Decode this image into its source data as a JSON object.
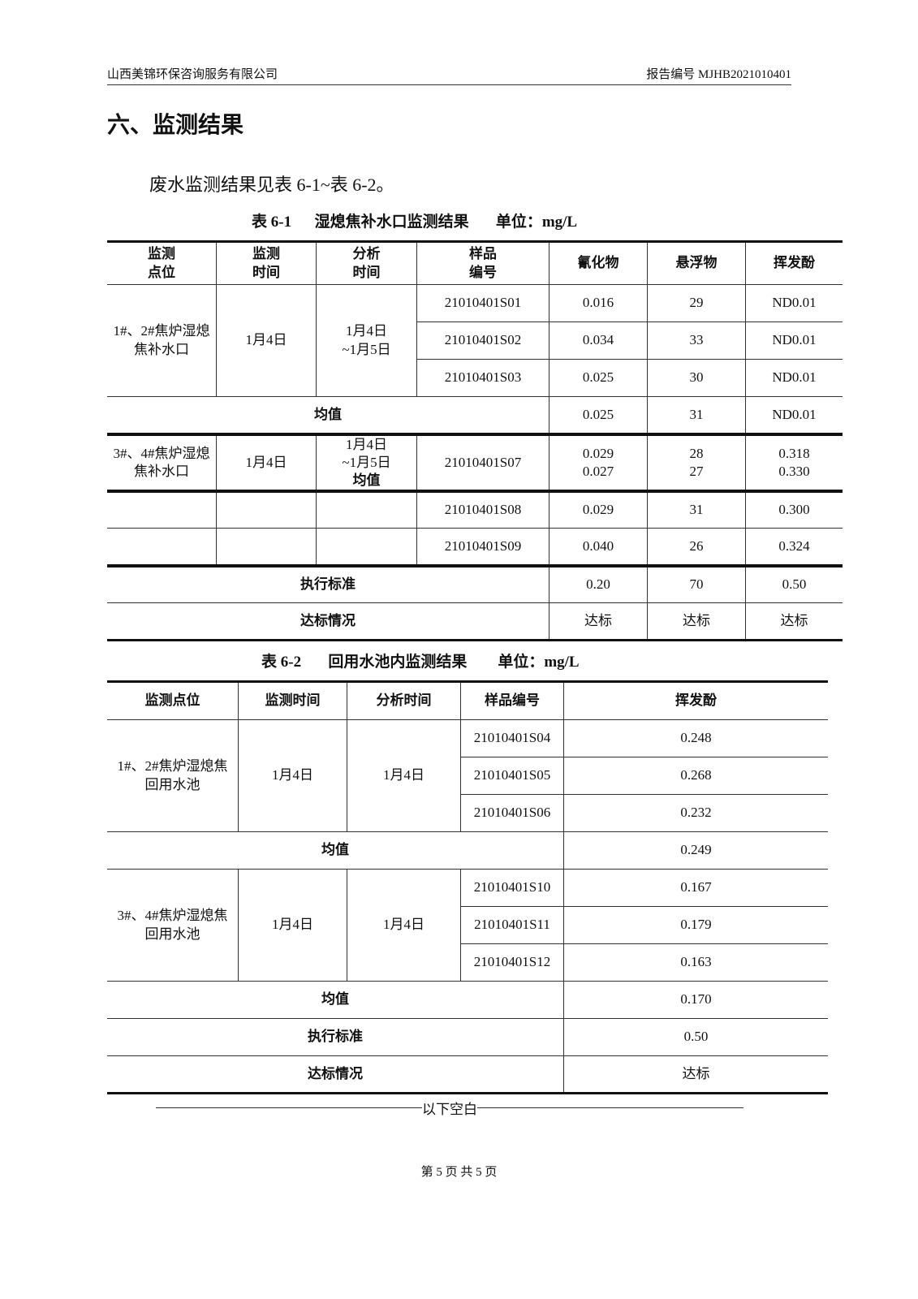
{
  "header": {
    "company": "山西美锦环保咨询服务有限公司",
    "report_no": "报告编号 MJHB2021010401"
  },
  "section_title": "六、监测结果",
  "intro": "废水监测结果见表 6-1~表 6-2。",
  "table1": {
    "caption": "表 6-1      湿熄焦补水口监测结果       单位：mg/L",
    "headers": [
      "监测\n点位",
      "监测\n时间",
      "分析\n时间",
      "样品\n编号",
      "氰化物",
      "悬浮物",
      "挥发酚"
    ],
    "group1": {
      "site": "1#、2#焦炉湿熄焦补水口",
      "date": "1月4日",
      "analysis": "1月4日\n~1月5日",
      "rows": [
        [
          "21010401S01",
          "0.016",
          "29",
          "ND0.01"
        ],
        [
          "21010401S02",
          "0.034",
          "33",
          "ND0.01"
        ],
        [
          "21010401S03",
          "0.025",
          "30",
          "ND0.01"
        ]
      ]
    },
    "mean_label": "均值",
    "mean1": [
      "0.025",
      "31",
      "ND0.01"
    ],
    "group2": {
      "site": "3#、4#焦炉湿熄焦补水口",
      "date": "1月4日",
      "analysis": "1月4日\n~1月5日",
      "row_overlap": {
        "sample": "21010401S07",
        "a": [
          "0.029",
          "28",
          "0.318"
        ],
        "b": [
          "0.027",
          "27",
          "0.330"
        ]
      },
      "rows": [
        [
          "21010401S08",
          "0.029",
          "31",
          "0.300"
        ],
        [
          "21010401S09",
          "0.040",
          "26",
          "0.324"
        ]
      ]
    },
    "standard_label": "执行标准",
    "standard": [
      "0.20",
      "70",
      "0.50"
    ],
    "compliance_label": "达标情况",
    "compliance": [
      "达标",
      "达标",
      "达标"
    ]
  },
  "table2": {
    "caption": "表 6-2       回用水池内监测结果        单位：mg/L",
    "headers": [
      "监测点位",
      "监测时间",
      "分析时间",
      "样品编号",
      "挥发酚"
    ],
    "group1": {
      "site": "1#、2#焦炉湿熄焦\n回用水池",
      "date": "1月4日",
      "analysis": "1月4日",
      "rows": [
        [
          "21010401S04",
          "0.248"
        ],
        [
          "21010401S05",
          "0.268"
        ],
        [
          "21010401S06",
          "0.232"
        ]
      ],
      "mean": "0.249"
    },
    "group2": {
      "site": "3#、4#焦炉湿熄焦\n回用水池",
      "date": "1月4日",
      "analysis": "1月4日",
      "rows": [
        [
          "21010401S10",
          "0.167"
        ],
        [
          "21010401S11",
          "0.179"
        ],
        [
          "21010401S12",
          "0.163"
        ]
      ],
      "mean": "0.170"
    },
    "mean_label": "均值",
    "standard_label": "执行标准",
    "standard": "0.50",
    "compliance_label": "达标情况",
    "compliance": "达标"
  },
  "end_text": "以下空白",
  "footer": "第 5 页 共 5 页"
}
